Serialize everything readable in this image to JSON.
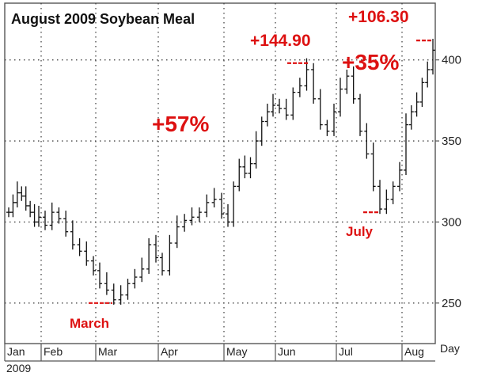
{
  "chart_data": {
    "type": "ohlc",
    "title": "August 2009 Soybean Meal",
    "year_label": "2009",
    "xlabel": "Day",
    "ylim": [
      225,
      435
    ],
    "y_ticks": [
      250,
      300,
      350,
      400
    ],
    "grid": true,
    "months": [
      "Jan",
      "Feb",
      "Mar",
      "Apr",
      "May",
      "Jun",
      "Jul",
      "Aug"
    ],
    "annotations": [
      {
        "text": "+144.90"
      },
      {
        "text": "+106.30"
      },
      {
        "text": "+57%"
      },
      {
        "text": "+35%"
      },
      {
        "text": "March"
      },
      {
        "text": "July"
      }
    ],
    "series": [
      {
        "month_prices": [
          {
            "month": "Jan",
            "closes": [
              306,
              312,
              318,
              316,
              310,
              306,
              300,
              303
            ]
          },
          {
            "month": "Feb",
            "closes": [
              298,
              306,
              302,
              294,
              286,
              282,
              276,
              270
            ]
          },
          {
            "month": "Mar",
            "closes": [
              262,
              258,
              252,
              255,
              262,
              266,
              271,
              286,
              278
            ]
          },
          {
            "month": "Apr",
            "closes": [
              270,
              287,
              297,
              301,
              303,
              306,
              312,
              314,
              305
            ]
          },
          {
            "month": "May",
            "closes": [
              300,
              322,
              334,
              330,
              336,
              350,
              362,
              368,
              372
            ]
          },
          {
            "month": "Jun",
            "closes": [
              370,
              366,
              380,
              384,
              394,
              376,
              360,
              356,
              368
            ]
          },
          {
            "month": "Jul",
            "closes": [
              382,
              390,
              376,
              356,
              342,
              322,
              308,
              314,
              322,
              332
            ]
          },
          {
            "month": "Aug",
            "closes": [
              360,
              368,
              374,
              386,
              394,
              406
            ]
          }
        ],
        "low_march": 250,
        "high_june": 398,
        "low_july": 306,
        "high_august": 412
      }
    ]
  }
}
